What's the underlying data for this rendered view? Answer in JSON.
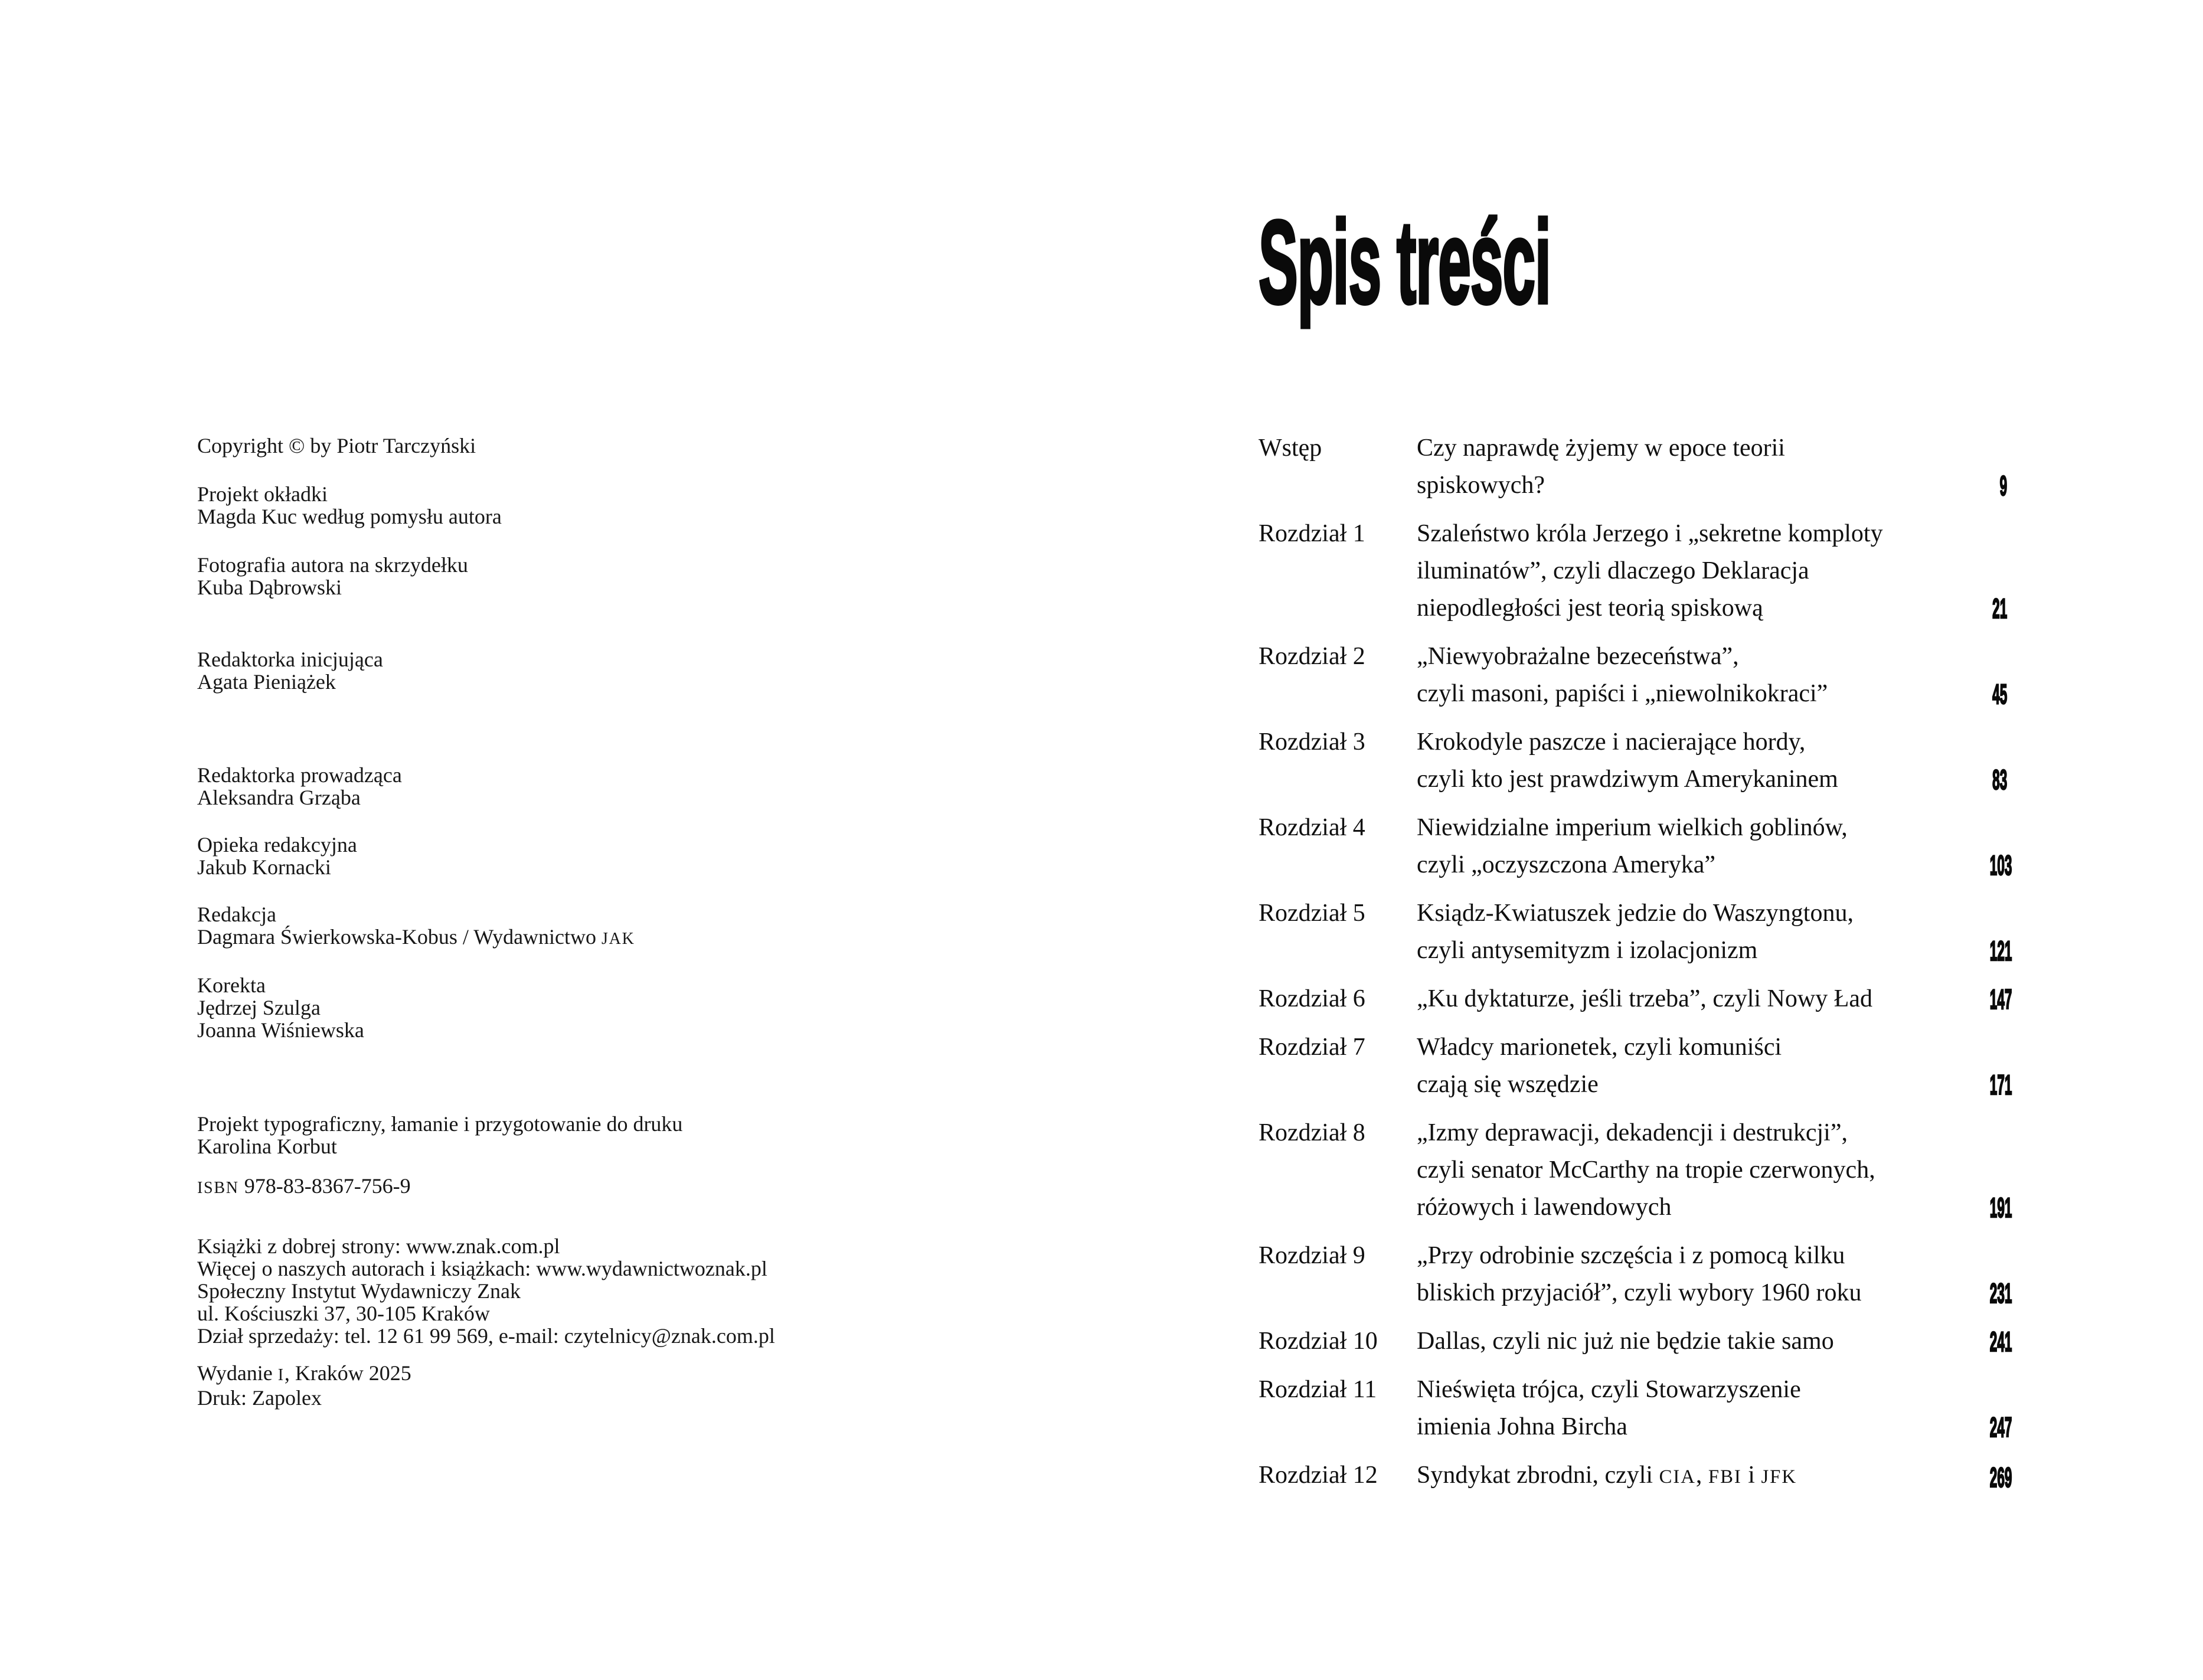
{
  "colors": {
    "background": "#ffffff",
    "text": "#161616",
    "heading": "#0a0a0a"
  },
  "left": {
    "groups": [
      {
        "name": "copyright-notice",
        "lines": [
          "Copyright © by Piotr Tarczyński"
        ]
      },
      {
        "name": "cover-design-credit",
        "lines": [
          "Projekt okładki",
          "Magda Kuc według pomysłu autora"
        ]
      },
      {
        "name": "author-photo-credit",
        "lines": [
          "Fotografia autora na skrzydełku",
          "Kuba Dąbrowski"
        ]
      },
      {
        "name": "initiating-editor-credit",
        "lines": [
          "Redaktorka inicjująca",
          "Agata Pieniążek"
        ]
      },
      {
        "name": "managing-editor-credit",
        "lines": [
          "Redaktorka prowadząca",
          "Aleksandra Grząba"
        ]
      },
      {
        "name": "editorial-care-credit",
        "lines": [
          "Opieka redakcyjna",
          "Jakub Kornacki"
        ]
      },
      {
        "name": "editing-credit",
        "lines": [
          "Redakcja",
          [
            "Dagmara Świerkowska-Kobus / Wydawnictwo ",
            {
              "t": "JAK",
              "sc": true
            }
          ]
        ]
      },
      {
        "name": "proofreading-credit",
        "lines": [
          "Korekta",
          "Jędrzej Szulga",
          "Joanna Wiśniewska"
        ]
      },
      {
        "name": "typesetting-credit",
        "lines": [
          "Projekt typograficzny, łamanie i przygotowanie do druku",
          "Karolina Korbut"
        ]
      },
      {
        "name": "isbn-line",
        "lines": [
          [
            {
              "t": "ISBN",
              "sc": true
            },
            " 978-83-8367-756-9"
          ]
        ]
      },
      {
        "name": "publisher-contact",
        "lines": [
          "Książki z dobrej strony: www.znak.com.pl",
          "Więcej o naszych autorach i książkach: www.wydawnictwoznak.pl",
          "Społeczny Instytut Wydawniczy Znak",
          "ul. Kościuszki 37, 30-105 Kraków",
          "Dział sprzedaży: tel. 12 61 99 569, e-mail: czytelnicy@znak.com.pl"
        ]
      },
      {
        "name": "edition-print-info",
        "lines": [
          [
            "Wydanie ",
            {
              "t": "I",
              "sc": true
            },
            ", Kraków 2025"
          ],
          "Druk: Zapolex"
        ]
      }
    ]
  },
  "right": {
    "title": "Spis treści",
    "toc": [
      {
        "label": "Wstęp",
        "lines": [
          "Czy naprawdę żyjemy w epoce teorii",
          "spiskowych?"
        ],
        "page": "9"
      },
      {
        "label": "Rozdział 1",
        "lines": [
          "Szaleństwo króla Jerzego i „sekretne komploty",
          "iluminatów”, czyli dlaczego Deklaracja",
          "niepodległości jest teorią spiskową"
        ],
        "page": "21"
      },
      {
        "label": "Rozdział 2",
        "lines": [
          "„Niewyobrażalne bezeceństwa”,",
          "czyli masoni, papiści i „niewolnikokraci”"
        ],
        "page": "45"
      },
      {
        "label": "Rozdział 3",
        "lines": [
          "Krokodyle paszcze i nacierające hordy,",
          "czyli kto jest prawdziwym Amerykaninem"
        ],
        "page": "83"
      },
      {
        "label": "Rozdział 4",
        "lines": [
          "Niewidzialne imperium wielkich goblinów,",
          "czyli „oczyszczona Ameryka”"
        ],
        "page": "103"
      },
      {
        "label": "Rozdział 5",
        "lines": [
          "Ksiądz-Kwiatuszek jedzie do Waszyngtonu,",
          "czyli antysemityzm i izolacjonizm"
        ],
        "page": "121"
      },
      {
        "label": "Rozdział 6",
        "lines": [
          "„Ku dyktaturze, jeśli trzeba”, czyli Nowy Ład"
        ],
        "page": "147"
      },
      {
        "label": "Rozdział 7",
        "lines": [
          "Władcy marionetek, czyli komuniści",
          "czają się wszędzie"
        ],
        "page": "171"
      },
      {
        "label": "Rozdział 8",
        "lines": [
          "„Izmy deprawacji, dekadencji i destrukcji”,",
          "czyli senator McCarthy na tropie czerwonych,",
          "różowych i lawendowych"
        ],
        "page": "191"
      },
      {
        "label": "Rozdział 9",
        "lines": [
          "„Przy odrobinie szczęścia i z pomocą kilku",
          "bliskich przyjaciół”, czyli wybory 1960 roku"
        ],
        "page": "231"
      },
      {
        "label": "Rozdział 10",
        "lines": [
          "Dallas, czyli nic już nie będzie takie samo"
        ],
        "page": "241"
      },
      {
        "label": "Rozdział 11",
        "lines": [
          "Nieświęta trójca, czyli Stowarzyszenie",
          "imienia Johna Bircha"
        ],
        "page": "247"
      },
      {
        "label": "Rozdział 12",
        "lines": [
          [
            "Syndykat zbrodni, czyli ",
            {
              "t": "CIA",
              "sc": true
            },
            ", ",
            {
              "t": "FBI",
              "sc": true
            },
            " i ",
            {
              "t": "JFK",
              "sc": true
            }
          ]
        ],
        "page": "269"
      }
    ]
  }
}
